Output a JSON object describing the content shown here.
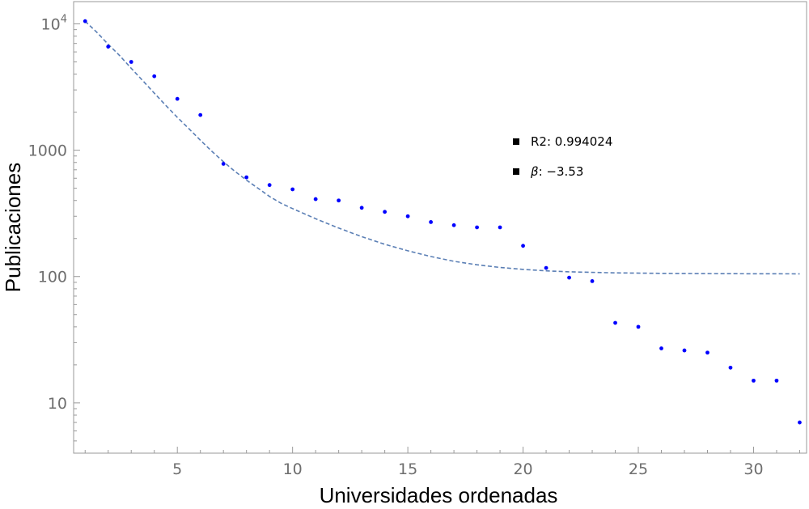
{
  "chart_data": {
    "type": "scatter",
    "xlabel": "Universidades ordenadas",
    "ylabel": "Publicaciones",
    "xlim": [
      0.5,
      32.3
    ],
    "ylim": [
      4,
      15000
    ],
    "yscale": "log",
    "grid": false,
    "x_ticks": [
      5,
      10,
      15,
      20,
      25,
      30
    ],
    "y_ticks": [
      {
        "value": 10,
        "label": "10",
        "sup": ""
      },
      {
        "value": 100,
        "label": "100",
        "sup": ""
      },
      {
        "value": 1000,
        "label": "1000",
        "sup": ""
      },
      {
        "value": 10000,
        "label": "10",
        "sup": "4"
      }
    ],
    "series": [
      {
        "kind": "points",
        "color": "#0000ff",
        "x": [
          1,
          2,
          3,
          4,
          5,
          6,
          7,
          8,
          9,
          10,
          11,
          12,
          13,
          14,
          15,
          16,
          17,
          18,
          19,
          20,
          21,
          22,
          23,
          24,
          25,
          26,
          27,
          28,
          29,
          30,
          31,
          32
        ],
        "y": [
          10500,
          6600,
          5000,
          3850,
          2550,
          1900,
          780,
          610,
          530,
          490,
          410,
          400,
          350,
          325,
          300,
          270,
          255,
          245,
          245,
          175,
          117,
          98,
          92,
          43,
          40,
          27,
          26,
          25,
          19,
          15,
          15,
          7
        ]
      },
      {
        "kind": "fit",
        "color": "#5b7fb5",
        "x": [
          1,
          1.5,
          2,
          2.5,
          3,
          3.5,
          4,
          4.5,
          5,
          5.5,
          6,
          6.5,
          7,
          7.5,
          8,
          8.5,
          9,
          9.5,
          10,
          11,
          12,
          13,
          14,
          15,
          16,
          17,
          18,
          19,
          20,
          21,
          22,
          24,
          26,
          28,
          30,
          32
        ],
        "y": [
          10500,
          8600,
          6900,
          5600,
          4450,
          3550,
          2830,
          2260,
          1820,
          1480,
          1200,
          980,
          810,
          680,
          580,
          500,
          430,
          380,
          345,
          287,
          242,
          207,
          180,
          160,
          144,
          132,
          124,
          118,
          114,
          111,
          109,
          107,
          106,
          105.5,
          105.2,
          105
        ]
      }
    ],
    "legend": {
      "placement": "center-right",
      "entries": [
        {
          "marker": "■",
          "label": "R2: 0.994024",
          "italic": false
        },
        {
          "marker": "■",
          "label": "β: −3.53",
          "italic_prefix": "β",
          "rest": ": −3.53"
        }
      ]
    }
  }
}
